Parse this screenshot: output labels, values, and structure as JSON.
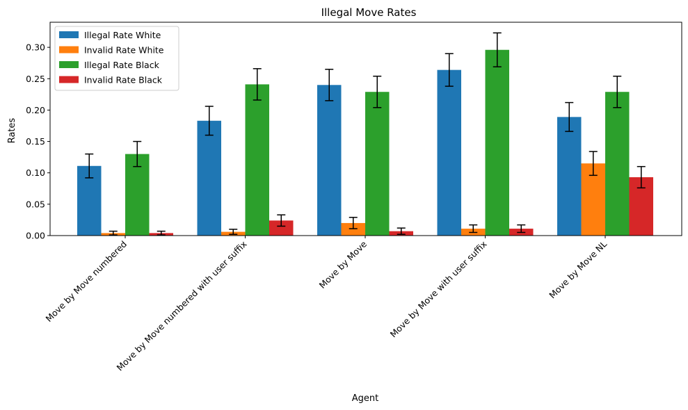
{
  "chart_data": {
    "type": "bar",
    "title": "Illegal Move Rates",
    "xlabel": "Agent",
    "ylabel": "Rates",
    "ylim": [
      0,
      0.34
    ],
    "yticks": [
      "0.00",
      "0.05",
      "0.10",
      "0.15",
      "0.20",
      "0.25",
      "0.30"
    ],
    "ytick_values": [
      0,
      0.05,
      0.1,
      0.15,
      0.2,
      0.25,
      0.3
    ],
    "categories": [
      "Move by Move numbered",
      "Move by Move numbered with user suffix",
      "Move by Move",
      "Move by Move with user suffix",
      "Move by Move NL"
    ],
    "legend_position": "upper-left",
    "series": [
      {
        "name": "Illegal Rate White",
        "color": "#1f77b4",
        "values": [
          0.111,
          0.183,
          0.24,
          0.264,
          0.189
        ],
        "errors": [
          0.019,
          0.023,
          0.025,
          0.026,
          0.023
        ]
      },
      {
        "name": "Invalid Rate White",
        "color": "#ff7f0e",
        "values": [
          0.004,
          0.006,
          0.02,
          0.011,
          0.115
        ],
        "errors": [
          0.003,
          0.004,
          0.009,
          0.006,
          0.019
        ]
      },
      {
        "name": "Illegal Rate Black",
        "color": "#2ca02c",
        "values": [
          0.13,
          0.241,
          0.229,
          0.296,
          0.229
        ],
        "errors": [
          0.02,
          0.025,
          0.025,
          0.027,
          0.025
        ]
      },
      {
        "name": "Invalid Rate Black",
        "color": "#d62728",
        "values": [
          0.004,
          0.024,
          0.007,
          0.011,
          0.093
        ],
        "errors": [
          0.003,
          0.009,
          0.005,
          0.006,
          0.017
        ]
      }
    ]
  }
}
